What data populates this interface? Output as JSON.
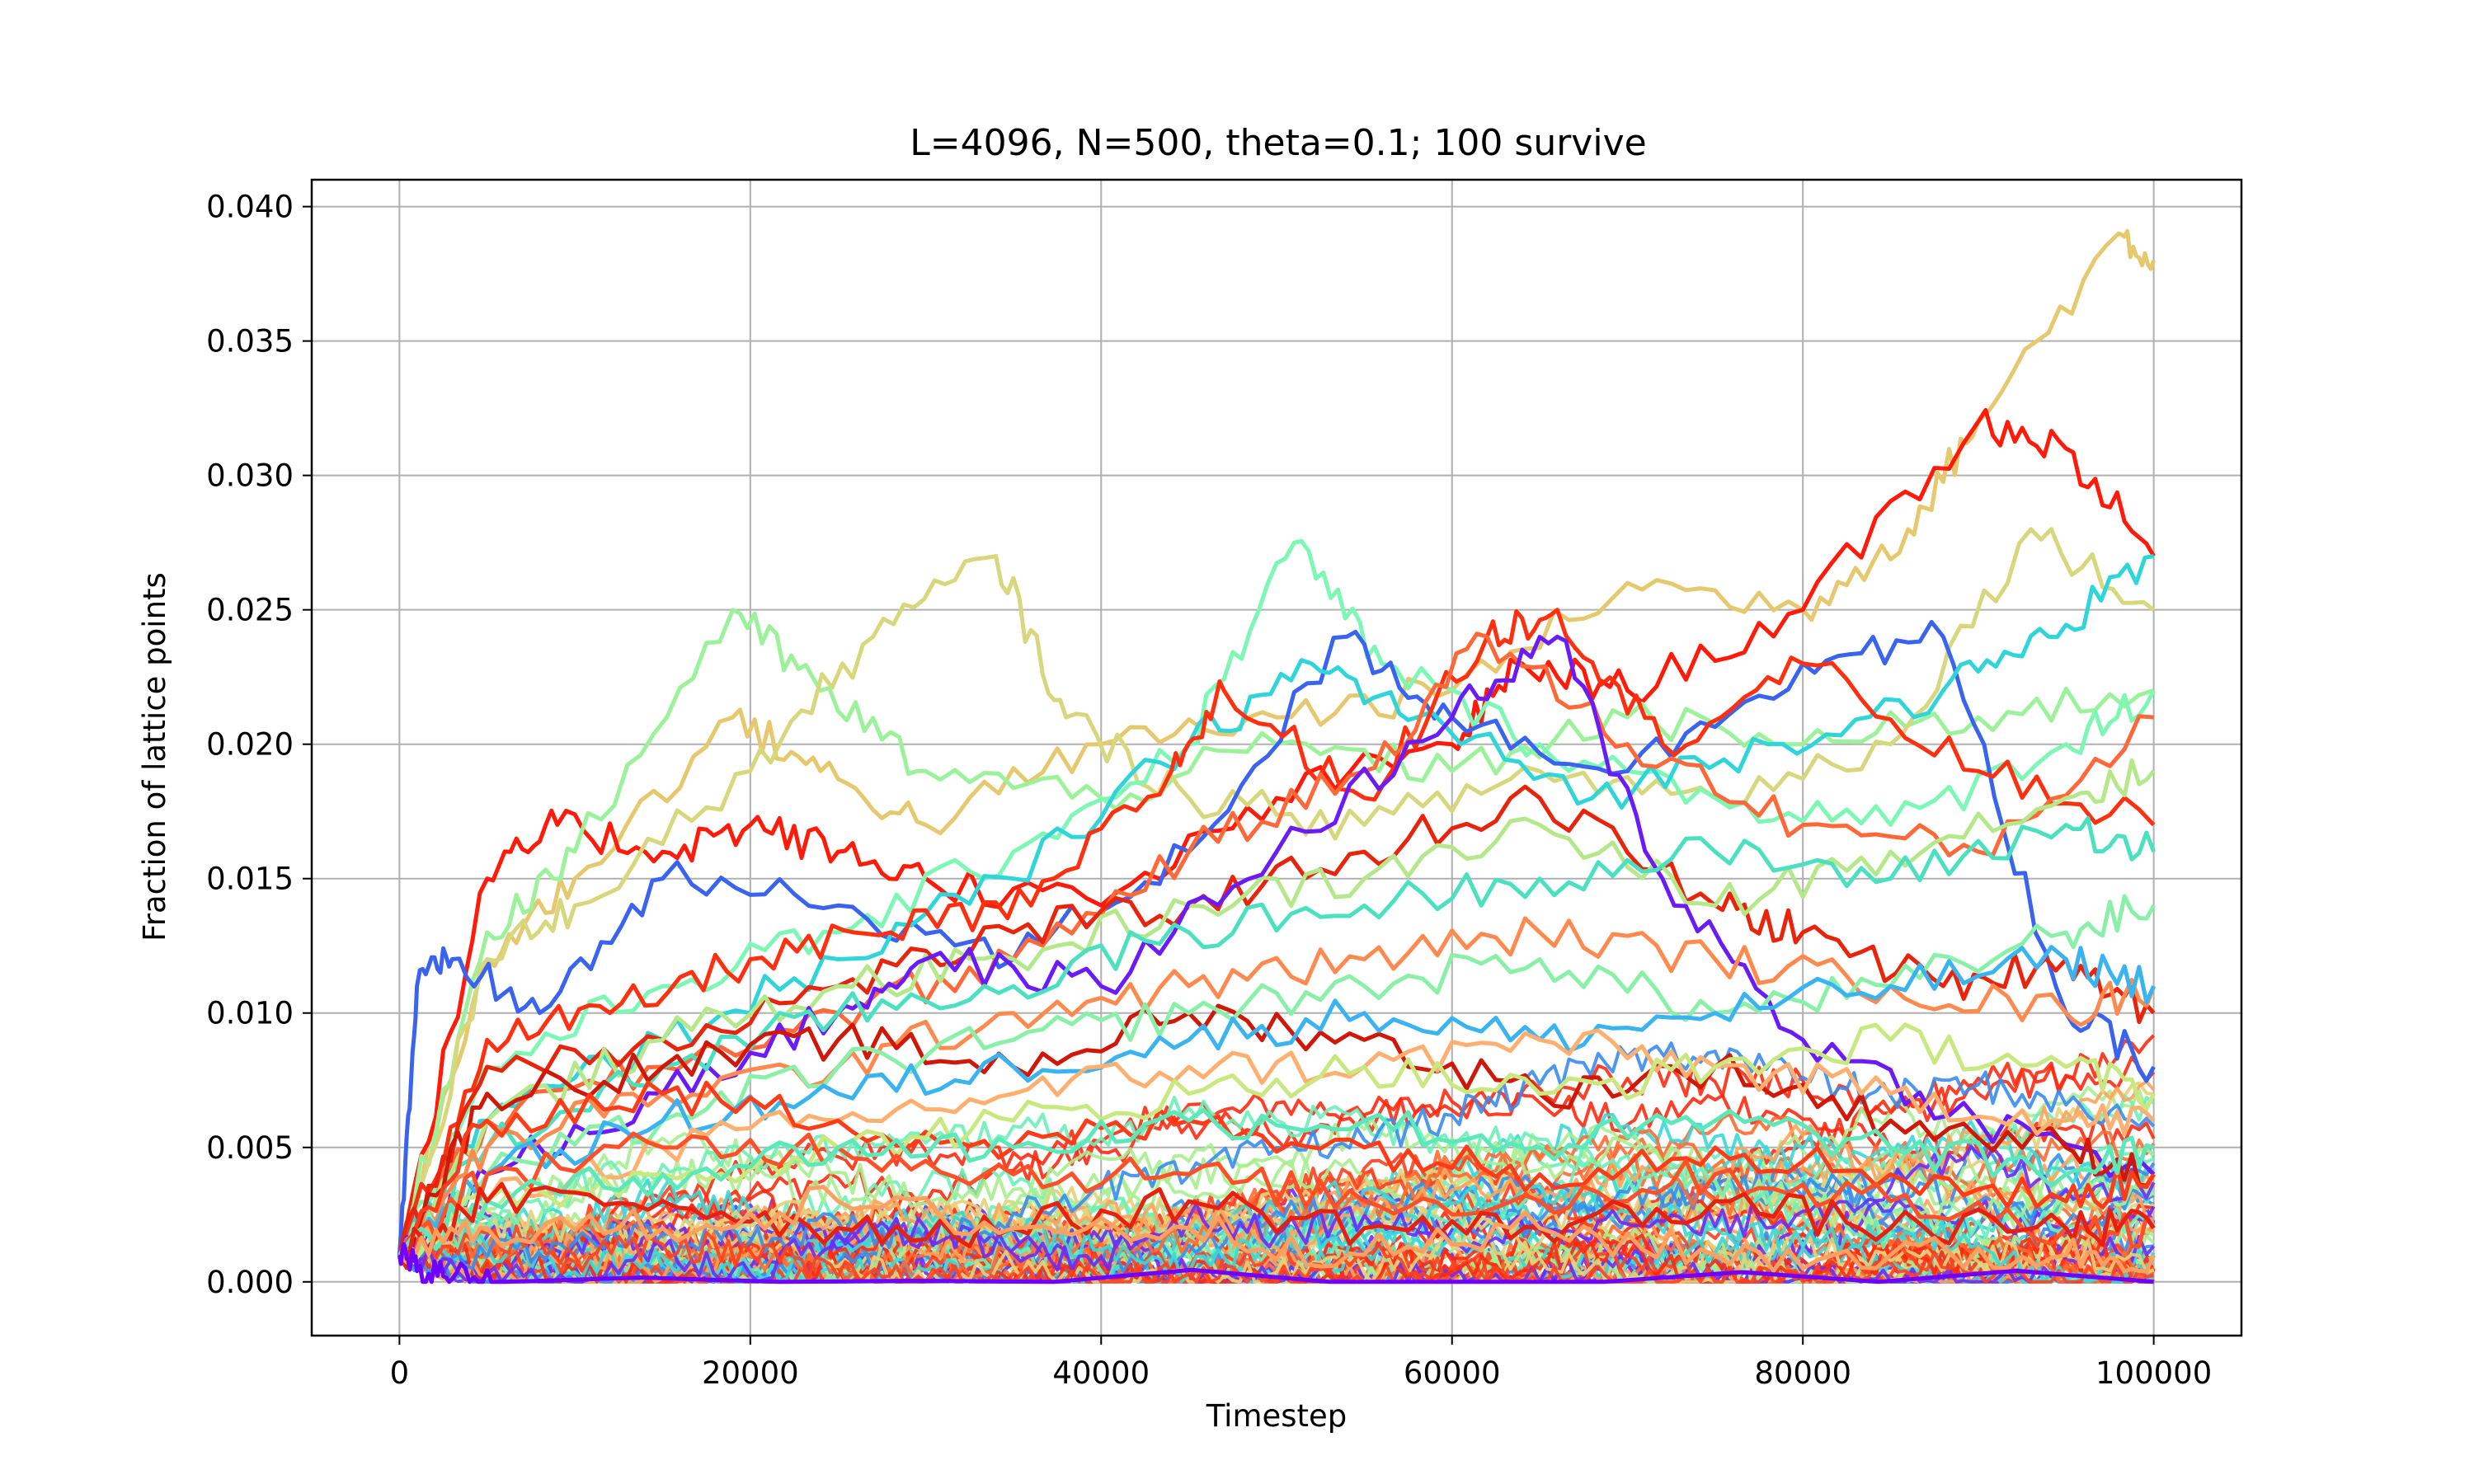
{
  "chart_data": {
    "type": "line",
    "title": "L=4096, N=500, theta=0.1; 100 survive",
    "xlabel": "Timestep",
    "ylabel": "Fraction of lattice points",
    "xlim": [
      -5000,
      105000
    ],
    "ylim": [
      -0.002,
      0.041
    ],
    "x_ticks": [
      0,
      20000,
      40000,
      60000,
      80000,
      100000
    ],
    "x_tick_labels": [
      "0",
      "20000",
      "40000",
      "60000",
      "80000",
      "100000"
    ],
    "y_ticks": [
      0.0,
      0.005,
      0.01,
      0.015,
      0.02,
      0.025,
      0.03,
      0.035,
      0.04
    ],
    "y_tick_labels": [
      "0.000",
      "0.005",
      "0.010",
      "0.015",
      "0.020",
      "0.025",
      "0.030",
      "0.035",
      "0.040"
    ],
    "grid": true,
    "legend": "none",
    "colormap": "rainbow",
    "series_count_shown": 500,
    "survivors": 100,
    "series": [
      {
        "color": "#e6c86e",
        "x": [
          0,
          5000,
          10000,
          19000,
          24000,
          30000,
          40000,
          50000,
          60000,
          70000,
          80000,
          86000,
          90000,
          98000,
          100000
        ],
        "y": [
          0.001,
          0.012,
          0.015,
          0.021,
          0.019,
          0.017,
          0.02,
          0.021,
          0.022,
          0.026,
          0.025,
          0.028,
          0.032,
          0.039,
          0.038
        ]
      },
      {
        "color": "#ff1a0a",
        "x": [
          0,
          5000,
          9000,
          15000,
          20000,
          25000,
          30000,
          40000,
          50000,
          60000,
          64000,
          70000,
          80000,
          90000,
          95000,
          100000
        ],
        "y": [
          0.001,
          0.015,
          0.017,
          0.016,
          0.017,
          0.016,
          0.015,
          0.014,
          0.018,
          0.02,
          0.023,
          0.022,
          0.025,
          0.032,
          0.031,
          0.027
        ]
      },
      {
        "color": "#9cf29a",
        "x": [
          0,
          5000,
          10000,
          19000,
          24000,
          30000,
          40000,
          50000,
          60000,
          70000,
          80000,
          90000,
          100000
        ],
        "y": [
          0.001,
          0.013,
          0.016,
          0.025,
          0.022,
          0.019,
          0.018,
          0.02,
          0.019,
          0.021,
          0.02,
          0.021,
          0.022
        ]
      },
      {
        "color": "#d7d87e",
        "x": [
          0,
          5000,
          10000,
          20000,
          27000,
          34000,
          38000,
          45000,
          55000,
          65000,
          75000,
          85000,
          93000,
          100000
        ],
        "y": [
          0.001,
          0.012,
          0.014,
          0.019,
          0.024,
          0.027,
          0.021,
          0.018,
          0.017,
          0.019,
          0.018,
          0.02,
          0.028,
          0.025
        ]
      },
      {
        "color": "#7cf7b4",
        "x": [
          0,
          5000,
          15000,
          25000,
          35000,
          45000,
          51000,
          56000,
          65000,
          75000,
          85000,
          95000,
          100000
        ],
        "y": [
          0.001,
          0.008,
          0.011,
          0.013,
          0.016,
          0.02,
          0.0275,
          0.023,
          0.02,
          0.018,
          0.017,
          0.02,
          0.022
        ]
      },
      {
        "color": "#3a64f0",
        "x": [
          0,
          1000,
          3000,
          8000,
          15000,
          25000,
          35000,
          45000,
          54000,
          60000,
          70000,
          80000,
          88000,
          95000,
          100000
        ],
        "y": [
          0.001,
          0.011,
          0.012,
          0.01,
          0.015,
          0.014,
          0.012,
          0.016,
          0.024,
          0.021,
          0.019,
          0.023,
          0.024,
          0.01,
          0.008
        ]
      },
      {
        "color": "#2fd5d8",
        "x": [
          0,
          5000,
          15000,
          25000,
          35000,
          45000,
          52000,
          58000,
          68000,
          78000,
          88000,
          94000,
          100000
        ],
        "y": [
          0.001,
          0.006,
          0.009,
          0.012,
          0.015,
          0.02,
          0.023,
          0.021,
          0.018,
          0.02,
          0.022,
          0.024,
          0.027
        ]
      },
      {
        "color": "#ff3010",
        "x": [
          0,
          5000,
          12000,
          20000,
          28000,
          36000,
          44000,
          47000,
          55000,
          62000,
          66000,
          72000,
          80000,
          90000,
          100000
        ],
        "y": [
          0.001,
          0.009,
          0.01,
          0.012,
          0.013,
          0.014,
          0.019,
          0.022,
          0.018,
          0.024,
          0.025,
          0.02,
          0.023,
          0.019,
          0.017
        ]
      },
      {
        "color": "#ff6838",
        "x": [
          0,
          5000,
          15000,
          25000,
          35000,
          45000,
          55000,
          62000,
          70000,
          80000,
          90000,
          100000
        ],
        "y": [
          0.001,
          0.006,
          0.008,
          0.01,
          0.012,
          0.016,
          0.019,
          0.024,
          0.02,
          0.017,
          0.016,
          0.021
        ]
      },
      {
        "color": "#e8250c",
        "x": [
          0,
          5000,
          15000,
          25000,
          35000,
          45000,
          55000,
          65000,
          75000,
          80000,
          88000,
          95000,
          100000
        ],
        "y": [
          0.001,
          0.008,
          0.009,
          0.011,
          0.013,
          0.014,
          0.016,
          0.018,
          0.014,
          0.013,
          0.011,
          0.012,
          0.01
        ]
      },
      {
        "color": "#b4e88a",
        "x": [
          0,
          5000,
          15000,
          25000,
          35000,
          45000,
          55000,
          65000,
          75000,
          85000,
          95000,
          100000
        ],
        "y": [
          0.001,
          0.006,
          0.009,
          0.011,
          0.012,
          0.014,
          0.015,
          0.017,
          0.014,
          0.016,
          0.018,
          0.019
        ]
      },
      {
        "color": "#6b1cf6",
        "x": [
          0,
          5000,
          15000,
          25000,
          30000,
          40000,
          50000,
          60000,
          66000,
          72000,
          80000,
          90000,
          100000
        ],
        "y": [
          0.001,
          0.004,
          0.007,
          0.01,
          0.012,
          0.011,
          0.016,
          0.021,
          0.024,
          0.015,
          0.009,
          0.006,
          0.004
        ]
      },
      {
        "color": "#4be0c0",
        "x": [
          0,
          5000,
          15000,
          25000,
          35000,
          45000,
          55000,
          65000,
          75000,
          85000,
          95000,
          100000
        ],
        "y": [
          0.001,
          0.005,
          0.008,
          0.01,
          0.011,
          0.013,
          0.014,
          0.015,
          0.016,
          0.015,
          0.017,
          0.016
        ]
      },
      {
        "color": "#ff8a50",
        "x": [
          0,
          5000,
          15000,
          25000,
          35000,
          45000,
          55000,
          65000,
          75000,
          85000,
          95000,
          100000
        ],
        "y": [
          0.001,
          0.005,
          0.007,
          0.008,
          0.01,
          0.011,
          0.012,
          0.013,
          0.012,
          0.011,
          0.01,
          0.011
        ]
      },
      {
        "color": "#d01808",
        "x": [
          0,
          5000,
          15000,
          25000,
          35000,
          45000,
          55000,
          65000,
          75000,
          85000,
          95000,
          100000
        ],
        "y": [
          0.001,
          0.007,
          0.008,
          0.009,
          0.008,
          0.01,
          0.009,
          0.007,
          0.008,
          0.006,
          0.005,
          0.004
        ]
      },
      {
        "color": "#8af0a8",
        "x": [
          0,
          5000,
          15000,
          25000,
          35000,
          45000,
          55000,
          65000,
          75000,
          85000,
          95000,
          100000
        ],
        "y": [
          0.001,
          0.004,
          0.006,
          0.008,
          0.009,
          0.01,
          0.011,
          0.012,
          0.01,
          0.011,
          0.013,
          0.014
        ]
      },
      {
        "color": "#3ab4f0",
        "x": [
          0,
          5000,
          15000,
          25000,
          35000,
          45000,
          55000,
          65000,
          75000,
          85000,
          95000,
          100000
        ],
        "y": [
          0.001,
          0.004,
          0.006,
          0.007,
          0.008,
          0.009,
          0.01,
          0.009,
          0.01,
          0.011,
          0.012,
          0.011
        ]
      },
      {
        "color": "#ffb070",
        "x": [
          0,
          5000,
          15000,
          25000,
          35000,
          45000,
          55000,
          65000,
          75000,
          85000,
          95000,
          100000
        ],
        "y": [
          0.001,
          0.003,
          0.005,
          0.006,
          0.007,
          0.008,
          0.008,
          0.009,
          0.008,
          0.007,
          0.006,
          0.006
        ]
      },
      {
        "color": "#ff3c18",
        "x": [
          0,
          5000,
          15000,
          25000,
          35000,
          45000,
          55000,
          65000,
          75000,
          85000,
          95000,
          100000
        ],
        "y": [
          0.001,
          0.006,
          0.007,
          0.006,
          0.005,
          0.006,
          0.005,
          0.004,
          0.005,
          0.004,
          0.003,
          0.004
        ]
      },
      {
        "color": "#c8e880",
        "x": [
          0,
          5000,
          15000,
          25000,
          35000,
          45000,
          55000,
          65000,
          75000,
          85000,
          95000,
          100000
        ],
        "y": [
          0.001,
          0.003,
          0.004,
          0.005,
          0.006,
          0.007,
          0.008,
          0.007,
          0.008,
          0.009,
          0.008,
          0.007
        ]
      },
      {
        "color": "#ff5028",
        "x": [
          0,
          5000,
          15000,
          25000,
          35000,
          45000,
          55000,
          65000,
          75000,
          85000,
          95000,
          100000
        ],
        "y": [
          0.001,
          0.004,
          0.005,
          0.005,
          0.004,
          0.004,
          0.003,
          0.003,
          0.004,
          0.003,
          0.002,
          0.002
        ]
      },
      {
        "color": "#5ce8b8",
        "x": [
          0,
          5000,
          15000,
          25000,
          35000,
          45000,
          55000,
          65000,
          75000,
          85000,
          95000,
          100000
        ],
        "y": [
          0.001,
          0.003,
          0.004,
          0.005,
          0.005,
          0.006,
          0.006,
          0.005,
          0.006,
          0.005,
          0.004,
          0.005
        ]
      },
      {
        "color": "#e82010",
        "x": [
          0,
          5000,
          15000,
          25000,
          35000,
          45000,
          55000,
          65000,
          75000,
          85000,
          95000,
          100000
        ],
        "y": [
          0.001,
          0.003,
          0.003,
          0.002,
          0.002,
          0.003,
          0.002,
          0.002,
          0.003,
          0.002,
          0.002,
          0.002
        ]
      },
      {
        "color": "#ffa060",
        "x": [
          0,
          5000,
          15000,
          25000,
          35000,
          45000,
          55000,
          65000,
          75000,
          85000,
          95000,
          100000
        ],
        "y": [
          0.001,
          0.002,
          0.002,
          0.003,
          0.002,
          0.002,
          0.001,
          0.002,
          0.001,
          0.001,
          0.001,
          0.001
        ]
      },
      {
        "color": "#7000ff",
        "x": [
          0,
          1000,
          3000,
          6000,
          100000
        ],
        "y": [
          0.001,
          0.0004,
          0.0001,
          0.0,
          0.0
        ]
      }
    ]
  }
}
